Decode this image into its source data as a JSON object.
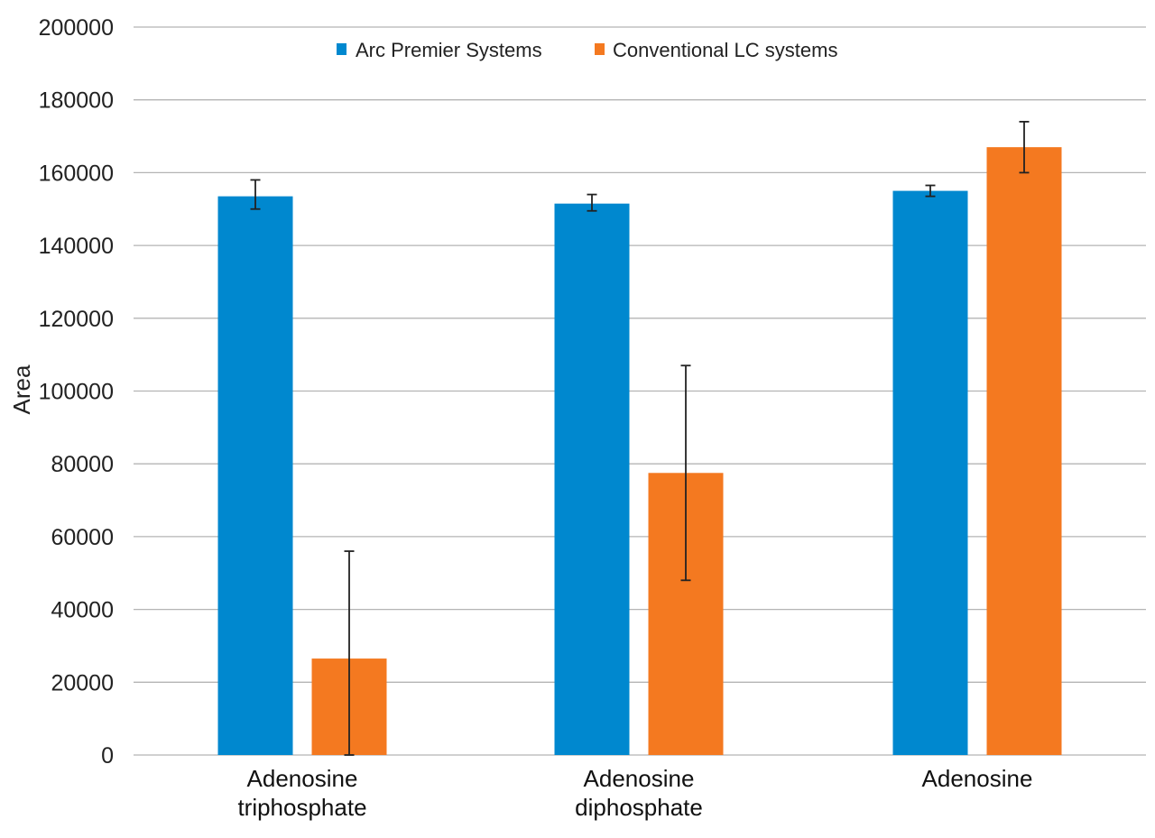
{
  "chart_data": {
    "type": "bar",
    "title": "",
    "xlabel": "",
    "ylabel": "Area",
    "ylim": [
      0,
      200000
    ],
    "yticks": [
      0,
      20000,
      40000,
      60000,
      80000,
      100000,
      120000,
      140000,
      160000,
      180000,
      200000
    ],
    "grid": true,
    "legend_position": "top-center",
    "categories": [
      [
        "Adenosine",
        "triphosphate"
      ],
      [
        "Adenosine",
        "diphosphate"
      ],
      [
        "Adenosine"
      ]
    ],
    "series": [
      {
        "name": "Arc Premier Systems",
        "color": "#0088cf",
        "values": [
          153500,
          151500,
          155000
        ],
        "error_low": [
          150000,
          149500,
          153500
        ],
        "error_high": [
          158000,
          154000,
          156500
        ]
      },
      {
        "name": "Conventional LC systems",
        "color": "#f47920",
        "values": [
          26500,
          77500,
          167000
        ],
        "error_low": [
          0,
          48000,
          160000
        ],
        "error_high": [
          56000,
          107000,
          174000
        ]
      }
    ]
  }
}
